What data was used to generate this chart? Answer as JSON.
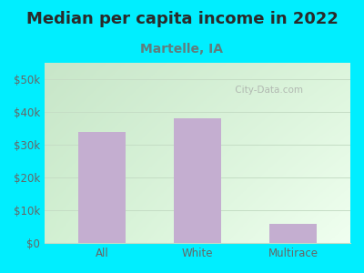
{
  "title": "Median per capita income in 2022",
  "subtitle": "Martelle, IA",
  "categories": [
    "All",
    "White",
    "Multirace"
  ],
  "values": [
    34000,
    38000,
    6000
  ],
  "bar_color": "#c4aed0",
  "outer_bg": "#00eeff",
  "plot_bg_top_left": "#c8e6c9",
  "plot_bg_top_right": "#e8f5e9",
  "plot_bg_bottom_left": "#dcedc8",
  "plot_bg_bottom_right": "#f5fff5",
  "title_color": "#2a2a2a",
  "subtitle_color": "#607d7d",
  "tick_label_color": "#666666",
  "grid_color": "#c5ddc5",
  "ylim": [
    0,
    55000
  ],
  "yticks": [
    0,
    10000,
    20000,
    30000,
    40000,
    50000
  ],
  "ytick_labels": [
    "$0",
    "$10k",
    "$20k",
    "$30k",
    "$40k",
    "$50k"
  ],
  "watermark": " City-Data.com",
  "title_fontsize": 13,
  "subtitle_fontsize": 10,
  "tick_fontsize": 8.5
}
